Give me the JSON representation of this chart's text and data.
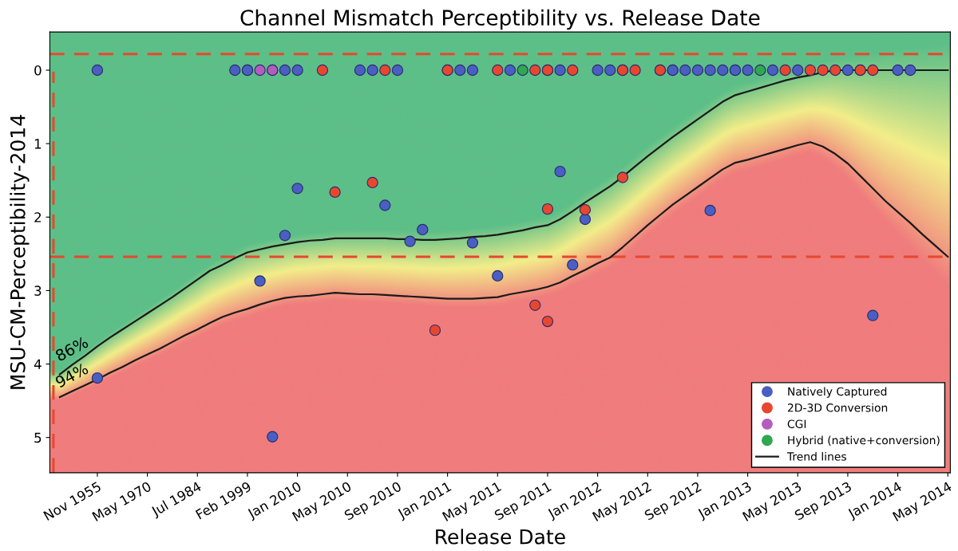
{
  "chart_data": {
    "type": "scatter",
    "title": "Channel Mismatch Perceptibility vs. Release Date",
    "xlabel": "Release Date",
    "ylabel": "MSU-CM-Perceptibility-2014",
    "categories": [
      null,
      null,
      null,
      "Nov 1955",
      null,
      null,
      null,
      "May 1970",
      null,
      null,
      null,
      "Jul 1984",
      null,
      null,
      null,
      "Feb 1999",
      null,
      null,
      null,
      "Jan 2010",
      null,
      null,
      null,
      "May 2010",
      null,
      null,
      null,
      "Sep 2010",
      null,
      null,
      null,
      "Jan 2011",
      null,
      null,
      null,
      "May 2011",
      null,
      null,
      null,
      "Sep 2011",
      null,
      null,
      null,
      "Jan 2012",
      null,
      null,
      null,
      "May 2012",
      null,
      null,
      null,
      "Sep 2012",
      null,
      null,
      null,
      "Jan 2013",
      null,
      null,
      null,
      "May 2013",
      null,
      null,
      null,
      "Sep 2013",
      null,
      null,
      null,
      "Jan 2014",
      null,
      null,
      null,
      "May 2014"
    ],
    "ylim": [
      5.48,
      -0.52
    ],
    "yticks": [
      0,
      1,
      2,
      3,
      4,
      5
    ],
    "grid": false,
    "legend": "bottom right",
    "marker": "circle",
    "series": [
      {
        "name": "Natively Captured",
        "color": "#4a5fc1",
        "values": [
          null,
          null,
          null,
          0,
          null,
          null,
          null,
          null,
          null,
          null,
          null,
          null,
          null,
          null,
          0,
          0,
          null,
          null,
          0,
          0,
          null,
          null,
          null,
          null,
          0,
          0,
          null,
          0,
          null,
          null,
          null,
          0,
          0,
          0,
          null,
          null,
          0,
          null,
          null,
          0,
          0,
          null,
          null,
          0,
          0,
          0,
          null,
          null,
          0,
          0,
          0,
          0,
          0,
          0,
          0,
          0,
          null,
          0,
          null,
          0,
          null,
          null,
          null,
          0,
          0,
          null,
          null,
          0,
          0,
          null,
          null,
          null
        ]
      },
      {
        "color": "#4a5fc1",
        "values": [
          null,
          null,
          null,
          4.19,
          null,
          null,
          null,
          null,
          null,
          null,
          null,
          null,
          null,
          null,
          null,
          0,
          2.87,
          4.99,
          2.25,
          1.61,
          null,
          null,
          null,
          null,
          null,
          null,
          1.84,
          null,
          2.33,
          2.17,
          null,
          null,
          null,
          2.35,
          null,
          2.8,
          null,
          null,
          null,
          null,
          1.38,
          2.65,
          2.03,
          null,
          null,
          null,
          null,
          null,
          null,
          0,
          null,
          null,
          1.91,
          null,
          0,
          null,
          null,
          null,
          null,
          null,
          null,
          null,
          null,
          null,
          null,
          3.34,
          null,
          null,
          null,
          null,
          null,
          null
        ]
      },
      {
        "name": "2D-3D Conversion",
        "color": "#e8472f",
        "values": [
          null,
          null,
          null,
          null,
          null,
          null,
          null,
          null,
          null,
          null,
          null,
          null,
          null,
          null,
          null,
          null,
          null,
          0,
          null,
          null,
          null,
          0,
          null,
          null,
          null,
          null,
          0,
          null,
          null,
          null,
          null,
          0,
          null,
          null,
          null,
          0,
          null,
          null,
          0,
          0,
          null,
          0,
          null,
          null,
          null,
          0,
          0,
          null,
          0,
          null,
          null,
          null,
          null,
          null,
          null,
          null,
          null,
          null,
          0,
          null,
          0,
          0,
          0,
          null,
          0,
          0,
          null,
          null,
          null,
          null,
          null,
          null
        ]
      },
      {
        "color": "#e8472f",
        "values": [
          null,
          null,
          null,
          null,
          null,
          null,
          null,
          null,
          null,
          null,
          null,
          null,
          null,
          null,
          null,
          null,
          null,
          null,
          null,
          null,
          null,
          null,
          1.66,
          null,
          null,
          1.53,
          null,
          null,
          null,
          null,
          3.54,
          null,
          null,
          null,
          null,
          null,
          null,
          null,
          3.2,
          1.89,
          null,
          null,
          1.9,
          null,
          null,
          1.46,
          null,
          null,
          null,
          null,
          null,
          null,
          null,
          null,
          null,
          null,
          null,
          null,
          null,
          null,
          null,
          null,
          null,
          null,
          null,
          null,
          null,
          null,
          null,
          null,
          null,
          null
        ]
      },
      {
        "color": "#e8472f",
        "values": [
          null,
          null,
          null,
          null,
          null,
          null,
          null,
          null,
          null,
          null,
          null,
          null,
          null,
          null,
          null,
          null,
          null,
          null,
          null,
          null,
          null,
          null,
          null,
          null,
          null,
          null,
          null,
          null,
          null,
          null,
          null,
          null,
          null,
          null,
          null,
          null,
          null,
          null,
          null,
          3.42,
          null,
          null,
          null,
          null,
          null,
          null,
          null,
          null,
          null,
          null,
          null,
          null,
          null,
          null,
          null,
          null,
          null,
          null,
          null,
          null,
          null,
          null,
          null,
          null,
          null,
          null,
          null,
          null,
          null,
          null,
          null,
          null
        ]
      },
      {
        "name": "CGI",
        "color": "#b45cbf",
        "values": [
          null,
          null,
          null,
          null,
          null,
          null,
          null,
          null,
          null,
          null,
          null,
          null,
          null,
          null,
          null,
          null,
          0,
          0,
          null,
          null,
          null,
          null,
          null,
          null,
          null,
          null,
          null,
          null,
          null,
          null,
          null,
          null,
          null,
          null,
          null,
          null,
          null,
          null,
          null,
          null,
          null,
          null,
          null,
          null,
          null,
          null,
          null,
          null,
          null,
          null,
          null,
          null,
          null,
          null,
          null,
          null,
          null,
          null,
          null,
          null,
          null,
          null,
          null,
          null,
          null,
          null,
          null,
          null,
          null,
          null,
          null,
          null
        ]
      },
      {
        "name": "Hybrid (native+conversion)",
        "color": "#2fa84f",
        "values": [
          null,
          null,
          null,
          null,
          null,
          null,
          null,
          null,
          null,
          null,
          null,
          null,
          null,
          null,
          null,
          null,
          null,
          null,
          null,
          null,
          null,
          null,
          null,
          null,
          null,
          null,
          null,
          null,
          null,
          null,
          null,
          null,
          null,
          null,
          null,
          null,
          null,
          0,
          null,
          null,
          null,
          null,
          null,
          null,
          null,
          null,
          null,
          null,
          null,
          null,
          null,
          null,
          null,
          null,
          null,
          null,
          0,
          null,
          null,
          null,
          null,
          null,
          null,
          null,
          null,
          null,
          null,
          null,
          null,
          null,
          null,
          null
        ]
      },
      {
        "name": "Trend lines",
        "type": "line",
        "color": "#1a1a1a",
        "marker": "none",
        "values": [
          4.14,
          4.01,
          3.89,
          3.76,
          3.64,
          3.53,
          3.42,
          3.31,
          3.2,
          3.09,
          2.97,
          2.85,
          2.73,
          2.65,
          2.56,
          2.48,
          2.44,
          2.4,
          2.37,
          2.34,
          2.32,
          2.31,
          2.29,
          2.29,
          2.29,
          2.29,
          2.29,
          2.3,
          2.3,
          2.31,
          2.31,
          2.3,
          2.29,
          2.27,
          2.26,
          2.24,
          2.21,
          2.18,
          2.14,
          2.11,
          2.03,
          1.92,
          1.8,
          1.69,
          1.58,
          1.45,
          1.31,
          1.17,
          1.04,
          0.91,
          0.79,
          0.67,
          0.55,
          0.43,
          0.34,
          0.29,
          0.24,
          0.19,
          0.14,
          0.1,
          0.07,
          0.03,
          0,
          0,
          0,
          0,
          0,
          0,
          0,
          0,
          0,
          0
        ]
      },
      {
        "type": "line",
        "color": "#1a1a1a",
        "marker": "none",
        "values": [
          4.45,
          4.37,
          4.29,
          4.21,
          4.12,
          4.04,
          3.95,
          3.87,
          3.79,
          3.7,
          3.61,
          3.53,
          3.44,
          3.36,
          3.3,
          3.25,
          3.19,
          3.14,
          3.1,
          3.08,
          3.07,
          3.05,
          3.03,
          3.04,
          3.05,
          3.05,
          3.06,
          3.07,
          3.08,
          3.09,
          3.1,
          3.11,
          3.11,
          3.11,
          3.1,
          3.09,
          3.05,
          3.02,
          2.99,
          2.95,
          2.89,
          2.8,
          2.72,
          2.63,
          2.55,
          2.41,
          2.26,
          2.11,
          1.97,
          1.83,
          1.71,
          1.59,
          1.47,
          1.35,
          1.26,
          1.22,
          1.17,
          1.12,
          1.07,
          1.02,
          0.98,
          1.04,
          1.14,
          1.27,
          1.44,
          1.61,
          1.78,
          1.93,
          2.08,
          2.24,
          2.39,
          2.54
        ]
      }
    ],
    "ref_lines": [
      {
        "axis": "y",
        "value": -0.22,
        "color": "#e8472f",
        "line_style": "dashed"
      },
      {
        "axis": "y",
        "value": 2.54,
        "color": "#e8472f",
        "line_style": "dashed"
      }
    ],
    "annotations": [
      "86%",
      "94%"
    ]
  }
}
